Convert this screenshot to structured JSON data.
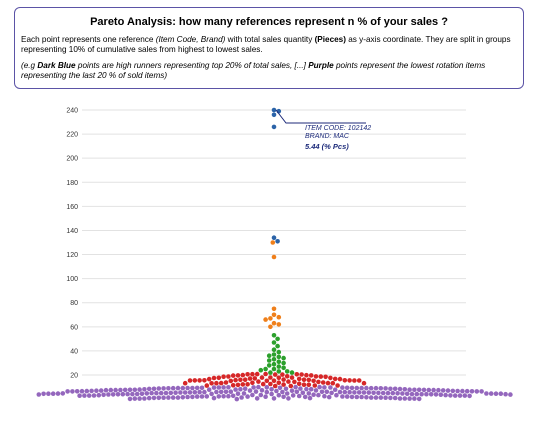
{
  "header": {
    "title": "Pareto Analysis: how many references represent n % of your sales ?",
    "desc_a": "Each point represents one reference ",
    "desc_b": "(Item Code, Brand)",
    "desc_c": " with total sales quantity ",
    "desc_d": "(Pieces)",
    "desc_e": " as y-axis coordinate. They are split in groups representing 10% of cumulative sales from highest to lowest sales.",
    "note_a": "(e.g ",
    "note_b": "Dark Blue",
    "note_c": " points are high runners representing top 20% of total sales, [...] ",
    "note_d": "Purple",
    "note_e": " points represent the lowest rotation items representing the last 20 % of sold items)"
  },
  "chart_data": {
    "type": "scatter",
    "y_ticks": [
      20,
      40,
      60,
      80,
      100,
      120,
      140,
      160,
      180,
      200,
      220,
      240
    ],
    "ylim": [
      0,
      250
    ],
    "grid": true,
    "colors": {
      "dark_blue": "#2b63a8",
      "orange": "#ef7f1a",
      "green": "#2ca02c",
      "red": "#d62728",
      "purple": "#9467bd"
    },
    "groups": [
      {
        "color": "dark_blue",
        "values": [
          240,
          239,
          236,
          226,
          134,
          131
        ]
      },
      {
        "color": "orange",
        "values": [
          130,
          118,
          75,
          70,
          68,
          67,
          66,
          63,
          62,
          60
        ]
      },
      {
        "color": "green",
        "values": [
          53,
          50,
          47,
          44,
          41,
          39,
          37,
          36,
          35,
          34,
          33,
          32,
          31,
          30,
          29,
          28,
          27,
          26,
          25,
          25,
          24,
          23,
          23,
          22,
          22
        ]
      },
      {
        "color": "red",
        "count": 80,
        "range": [
          10,
          21
        ]
      },
      {
        "color": "purple",
        "count": 230,
        "range": [
          0,
          10
        ]
      }
    ],
    "annotation": {
      "item_code": "ITEM CODE: 102142",
      "brand": "BRAND: MAC",
      "value": "5.44 (% Pcs)",
      "point_value": 240
    }
  }
}
